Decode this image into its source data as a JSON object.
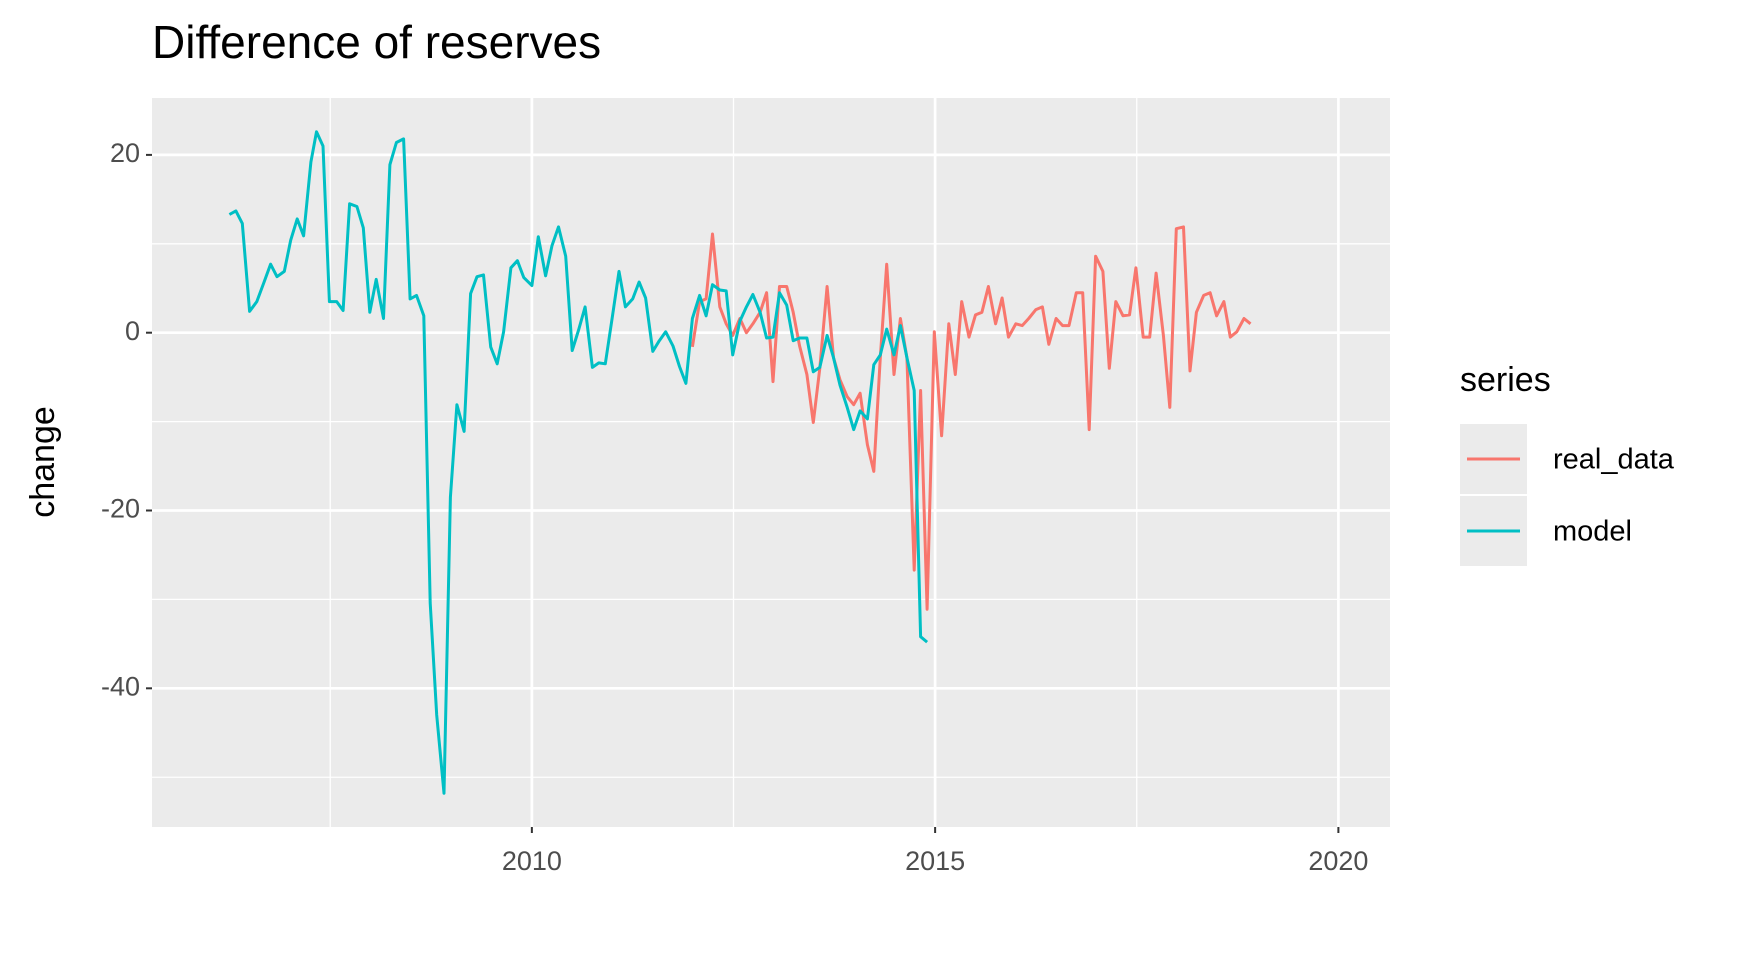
{
  "chart_data": {
    "type": "line",
    "title": "Difference of reserves",
    "y_label": "change",
    "legend_title": "series",
    "legend_position": "right",
    "grid": true,
    "xlim": [
      2005.29,
      2020.64
    ],
    "xticks": [
      2010,
      2015,
      2020
    ],
    "ylim": [
      -55.6,
      26.4
    ],
    "yticks": [
      -40,
      -20,
      0,
      20
    ],
    "series": [
      {
        "name": "real_data",
        "color": "#F8766D",
        "x": [
          2011.99,
          2012.08,
          2012.16,
          2012.24,
          2012.33,
          2012.41,
          2012.49,
          2012.58,
          2012.66,
          2012.74,
          2012.83,
          2012.91,
          2012.99,
          2013.07,
          2013.16,
          2013.24,
          2013.32,
          2013.41,
          2013.49,
          2013.57,
          2013.66,
          2013.74,
          2013.82,
          2013.91,
          2013.99,
          2014.07,
          2014.16,
          2014.24,
          2014.32,
          2014.4,
          2014.49,
          2014.57,
          2014.65,
          2014.74,
          2014.82,
          2014.9,
          2014.99,
          2015.08,
          2015.17,
          2015.25,
          2015.33,
          2015.42,
          2015.5,
          2015.58,
          2015.66,
          2015.75,
          2015.83,
          2015.91,
          2016.0,
          2016.08,
          2016.16,
          2016.25,
          2016.33,
          2016.41,
          2016.5,
          2016.58,
          2016.66,
          2016.75,
          2016.83,
          2016.91,
          2016.99,
          2017.08,
          2017.16,
          2017.24,
          2017.33,
          2017.41,
          2017.49,
          2017.58,
          2017.66,
          2017.74,
          2017.83,
          2017.91,
          2017.99,
          2018.08,
          2018.16,
          2018.24,
          2018.33,
          2018.41,
          2018.49,
          2018.58,
          2018.66,
          2018.74,
          2018.83,
          2018.91
        ],
        "values": [
          -1.6,
          3.5,
          3.8,
          11.1,
          2.9,
          1.0,
          -0.3,
          1.6,
          0.0,
          1.0,
          2.3,
          4.5,
          -5.5,
          5.2,
          5.2,
          2.3,
          -1.5,
          -4.7,
          -10.1,
          -4.0,
          5.2,
          -2.8,
          -5.3,
          -7.2,
          -8.1,
          -6.8,
          -12.6,
          -15.6,
          -2.8,
          7.7,
          -4.7,
          1.6,
          -2.8,
          -26.7,
          -6.5,
          -31.1,
          0.1,
          -11.6,
          1.0,
          -4.7,
          3.5,
          -0.5,
          2.0,
          2.3,
          5.2,
          1.0,
          3.9,
          -0.5,
          1.0,
          0.8,
          1.6,
          2.6,
          2.9,
          -1.3,
          1.6,
          0.8,
          0.8,
          4.5,
          4.5,
          -10.9,
          8.6,
          6.9,
          -4.0,
          3.5,
          1.9,
          2.0,
          7.3,
          -0.5,
          -0.5,
          6.7,
          -0.3,
          -8.4,
          11.7,
          11.9,
          -4.3,
          2.3,
          4.2,
          4.5,
          1.9,
          3.5,
          -0.5,
          0.1,
          1.6,
          1.0
        ]
      },
      {
        "name": "model",
        "color": "#00BFC4",
        "x": [
          2006.25,
          2006.33,
          2006.41,
          2006.5,
          2006.59,
          2006.68,
          2006.76,
          2006.84,
          2006.93,
          2007.01,
          2007.09,
          2007.17,
          2007.26,
          2007.33,
          2007.41,
          2007.49,
          2007.58,
          2007.66,
          2007.74,
          2007.83,
          2007.91,
          2007.99,
          2008.07,
          2008.16,
          2008.24,
          2008.32,
          2008.41,
          2008.49,
          2008.57,
          2008.66,
          2008.74,
          2008.82,
          2008.91,
          2008.99,
          2009.07,
          2009.16,
          2009.24,
          2009.32,
          2009.4,
          2009.49,
          2009.57,
          2009.65,
          2009.74,
          2009.82,
          2009.9,
          2010.0,
          2010.08,
          2010.17,
          2010.25,
          2010.33,
          2010.42,
          2010.5,
          2010.58,
          2010.66,
          2010.75,
          2010.83,
          2010.91,
          2011.0,
          2011.08,
          2011.16,
          2011.25,
          2011.33,
          2011.41,
          2011.5,
          2011.58,
          2011.66,
          2011.75,
          2011.83,
          2011.91,
          2011.99,
          2012.08,
          2012.16,
          2012.24,
          2012.33,
          2012.41,
          2012.49,
          2012.58,
          2012.66,
          2012.74,
          2012.83,
          2012.91,
          2012.99,
          2013.07,
          2013.16,
          2013.24,
          2013.32,
          2013.41,
          2013.49,
          2013.57,
          2013.66,
          2013.74,
          2013.82,
          2013.91,
          2013.99,
          2014.07,
          2014.16,
          2014.24,
          2014.32,
          2014.4,
          2014.49,
          2014.57,
          2014.65,
          2014.74,
          2014.82,
          2014.9
        ],
        "values": [
          13.3,
          13.7,
          12.3,
          2.4,
          3.5,
          5.7,
          7.7,
          6.3,
          6.9,
          10.4,
          12.8,
          10.9,
          19.2,
          22.6,
          21.0,
          3.5,
          3.5,
          2.5,
          14.5,
          14.2,
          11.8,
          2.3,
          6.0,
          1.6,
          18.9,
          21.4,
          21.8,
          3.8,
          4.2,
          1.9,
          -30.4,
          -43.0,
          -51.8,
          -18.5,
          -8.1,
          -11.1,
          4.4,
          6.3,
          6.5,
          -1.6,
          -3.5,
          0.1,
          7.3,
          8.1,
          6.2,
          5.3,
          10.8,
          6.4,
          9.8,
          11.9,
          8.6,
          -2.0,
          0.3,
          2.9,
          -3.9,
          -3.4,
          -3.5,
          1.9,
          6.9,
          2.9,
          3.8,
          5.7,
          3.9,
          -2.1,
          -0.9,
          0.1,
          -1.5,
          -3.8,
          -5.7,
          1.6,
          4.2,
          1.9,
          5.4,
          4.8,
          4.7,
          -2.5,
          1.3,
          2.9,
          4.3,
          2.3,
          -0.6,
          -0.5,
          4.5,
          3.1,
          -0.9,
          -0.6,
          -0.6,
          -4.4,
          -3.9,
          -0.3,
          -2.8,
          -5.9,
          -8.4,
          -10.9,
          -8.8,
          -9.7,
          -3.6,
          -2.5,
          0.4,
          -2.5,
          0.8,
          -2.8,
          -6.5,
          -34.2,
          -34.8
        ]
      }
    ]
  }
}
